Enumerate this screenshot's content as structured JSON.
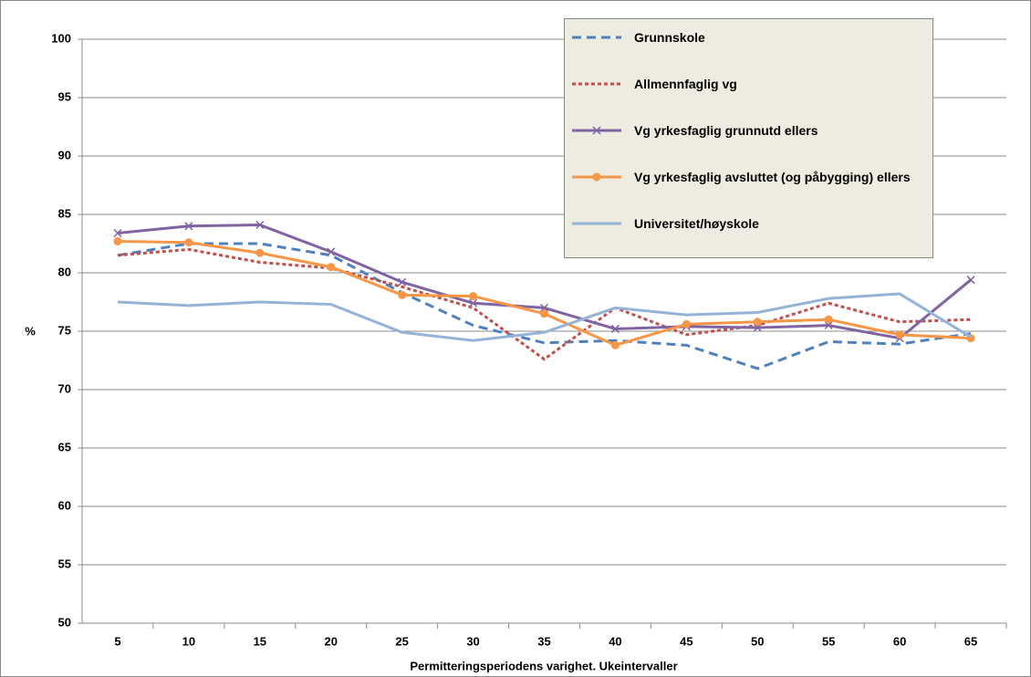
{
  "chart_data": {
    "type": "line",
    "x_label": "Permitteringsperiodens varighet. Ukeintervaller",
    "y_label": "%",
    "categories": [
      "5",
      "10",
      "15",
      "20",
      "25",
      "30",
      "35",
      "40",
      "45",
      "50",
      "55",
      "60",
      "65"
    ],
    "ylim": [
      50,
      100
    ],
    "yticks": [
      50,
      55,
      60,
      65,
      70,
      75,
      80,
      85,
      90,
      95,
      100
    ],
    "grid": true,
    "legend": "top-right",
    "series": [
      {
        "name": "Grunnskole",
        "color": "#4f81bd",
        "style": "dashed",
        "marker": "none",
        "values": [
          81.5,
          82.5,
          82.5,
          81.5,
          78.3,
          75.5,
          74.0,
          74.2,
          73.8,
          71.8,
          74.1,
          73.9,
          74.8
        ]
      },
      {
        "name": "Allmennfaglig vg",
        "color": "#c0504d",
        "style": "dotted",
        "marker": "none",
        "values": [
          81.5,
          82.0,
          80.9,
          80.4,
          78.8,
          77.0,
          72.6,
          77.0,
          74.7,
          75.5,
          77.4,
          75.8,
          76.0
        ]
      },
      {
        "name": "Vg yrkesfaglig grunnutd ellers",
        "color": "#8064a2",
        "style": "solid",
        "marker": "x",
        "values": [
          83.4,
          84.0,
          84.1,
          81.8,
          79.2,
          77.4,
          77.0,
          75.2,
          75.4,
          75.3,
          75.5,
          74.4,
          79.4
        ]
      },
      {
        "name": "Vg yrkesfaglig avsluttet (og påbygging) ellers",
        "color": "#f79646",
        "style": "solid",
        "marker": "circle",
        "values": [
          82.7,
          82.6,
          81.7,
          80.5,
          78.1,
          78.0,
          76.5,
          73.8,
          75.6,
          75.8,
          76.0,
          74.7,
          74.4
        ]
      },
      {
        "name": "Universitet/høyskole",
        "color": "#95b3d7",
        "style": "solid",
        "marker": "none",
        "values": [
          77.5,
          77.2,
          77.5,
          77.3,
          74.9,
          74.2,
          74.9,
          77.0,
          76.4,
          76.6,
          77.8,
          78.2,
          74.5
        ]
      }
    ]
  }
}
